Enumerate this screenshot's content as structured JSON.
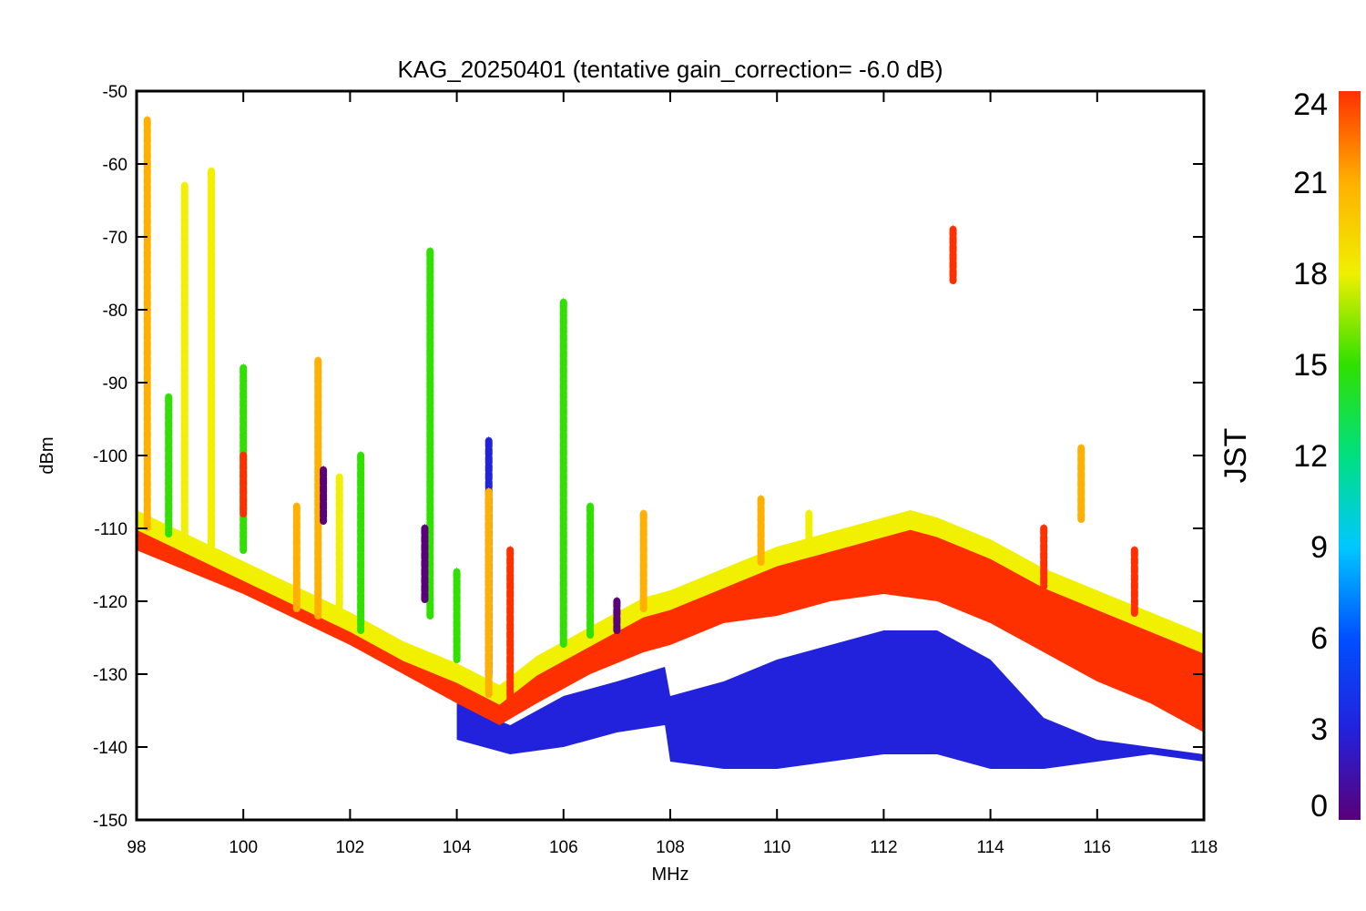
{
  "chart_data": {
    "type": "scatter",
    "title": "KAG_20250401 (tentative gain_correction= -6.0 dB)",
    "xlabel": "MHz",
    "ylabel": "dBm",
    "xlim": [
      98,
      118
    ],
    "ylim": [
      -150,
      -50
    ],
    "x_ticks": [
      "98",
      "100",
      "102",
      "104",
      "106",
      "108",
      "110",
      "112",
      "114",
      "116",
      "118"
    ],
    "y_ticks": [
      "-50",
      "-60",
      "-70",
      "-80",
      "-90",
      "-100",
      "-110",
      "-120",
      "-130",
      "-140",
      "-150"
    ],
    "colorbar": {
      "label": "JST",
      "range": [
        0,
        24
      ],
      "ticks": [
        "24",
        "21",
        "18",
        "15",
        "12",
        "9",
        "6",
        "3",
        "0"
      ],
      "colormap": [
        "#5a007a",
        "#2222dd",
        "#0050ff",
        "#00c8ff",
        "#00e080",
        "#30e000",
        "#f0f000",
        "#ffb000",
        "#ff3000"
      ]
    },
    "background_band": {
      "description_values": "noise floor upper edge (dBm) vs frequency (MHz)",
      "day_upper": [
        [
          98,
          -109
        ],
        [
          100,
          -116
        ],
        [
          102,
          -123
        ],
        [
          103,
          -127
        ],
        [
          104,
          -130
        ],
        [
          104.8,
          -133
        ],
        [
          105.5,
          -129
        ],
        [
          106.5,
          -125
        ],
        [
          107.5,
          -121
        ],
        [
          108,
          -120
        ],
        [
          109,
          -117
        ],
        [
          110,
          -114
        ],
        [
          111,
          -112
        ],
        [
          112,
          -110
        ],
        [
          112.5,
          -109
        ],
        [
          113,
          -110
        ],
        [
          114,
          -113
        ],
        [
          115,
          -117
        ],
        [
          116,
          -120
        ],
        [
          117,
          -123
        ],
        [
          118,
          -126
        ]
      ],
      "day_lower": [
        [
          98,
          -113
        ],
        [
          100,
          -119
        ],
        [
          102,
          -126
        ],
        [
          103,
          -130
        ],
        [
          104,
          -134
        ],
        [
          104.8,
          -137
        ],
        [
          105.5,
          -134
        ],
        [
          106.5,
          -130
        ],
        [
          107.5,
          -127
        ],
        [
          108,
          -126
        ],
        [
          109,
          -123
        ],
        [
          110,
          -122
        ],
        [
          111,
          -120
        ],
        [
          112,
          -119
        ],
        [
          113,
          -120
        ],
        [
          114,
          -123
        ],
        [
          115,
          -127
        ],
        [
          116,
          -131
        ],
        [
          117,
          -134
        ],
        [
          118,
          -138
        ]
      ],
      "night_upper": [
        [
          104,
          -134
        ],
        [
          105,
          -137
        ],
        [
          106,
          -133
        ],
        [
          107,
          -131
        ],
        [
          107.9,
          -129
        ],
        [
          108,
          -133
        ],
        [
          109,
          -131
        ],
        [
          110,
          -128
        ],
        [
          111,
          -126
        ],
        [
          112,
          -124
        ],
        [
          113,
          -124
        ],
        [
          114,
          -128
        ],
        [
          115,
          -136
        ],
        [
          116,
          -139
        ],
        [
          117,
          -140
        ],
        [
          118,
          -141
        ]
      ],
      "night_lower": [
        [
          104,
          -139
        ],
        [
          105,
          -141
        ],
        [
          106,
          -140
        ],
        [
          107,
          -138
        ],
        [
          107.9,
          -137
        ],
        [
          108,
          -142
        ],
        [
          109,
          -143
        ],
        [
          110,
          -143
        ],
        [
          111,
          -142
        ],
        [
          112,
          -141
        ],
        [
          113,
          -141
        ],
        [
          114,
          -143
        ],
        [
          115,
          -143
        ],
        [
          116,
          -142
        ],
        [
          117,
          -141
        ],
        [
          118,
          -142
        ]
      ]
    },
    "stations": [
      {
        "freq": 98.2,
        "y_top": -54,
        "y_bottom": -110,
        "jst": 20
      },
      {
        "freq": 98.6,
        "y_top": -92,
        "y_bottom": -111,
        "jst": 16
      },
      {
        "freq": 98.9,
        "y_top": -63,
        "y_bottom": -112,
        "jst": 19
      },
      {
        "freq": 99.4,
        "y_top": -61,
        "y_bottom": -113,
        "jst": 18
      },
      {
        "freq": 100.0,
        "y_top": -88,
        "y_bottom": -113,
        "jst": 15
      },
      {
        "freq": 100.0,
        "y_top": -100,
        "y_bottom": -108,
        "jst": 23
      },
      {
        "freq": 101.0,
        "y_top": -107,
        "y_bottom": -121,
        "jst": 20
      },
      {
        "freq": 101.4,
        "y_top": -87,
        "y_bottom": -122,
        "jst": 20
      },
      {
        "freq": 101.5,
        "y_top": -102,
        "y_bottom": -109,
        "jst": 1
      },
      {
        "freq": 101.8,
        "y_top": -103,
        "y_bottom": -123,
        "jst": 17
      },
      {
        "freq": 102.2,
        "y_top": -100,
        "y_bottom": -124,
        "jst": 15
      },
      {
        "freq": 103.5,
        "y_top": -72,
        "y_bottom": -122,
        "jst": 14
      },
      {
        "freq": 103.4,
        "y_top": -110,
        "y_bottom": -120,
        "jst": 1
      },
      {
        "freq": 104.0,
        "y_top": -116,
        "y_bottom": -128,
        "jst": 15
      },
      {
        "freq": 104.6,
        "y_top": -98,
        "y_bottom": -130,
        "jst": 4
      },
      {
        "freq": 104.6,
        "y_top": -105,
        "y_bottom": -133,
        "jst": 20
      },
      {
        "freq": 105.0,
        "y_top": -113,
        "y_bottom": -134,
        "jst": 23
      },
      {
        "freq": 106.0,
        "y_top": -79,
        "y_bottom": -126,
        "jst": 16
      },
      {
        "freq": 106.5,
        "y_top": -107,
        "y_bottom": -125,
        "jst": 14
      },
      {
        "freq": 107.0,
        "y_top": -120,
        "y_bottom": -124,
        "jst": 1
      },
      {
        "freq": 107.5,
        "y_top": -108,
        "y_bottom": -121,
        "jst": 22
      },
      {
        "freq": 109.7,
        "y_top": -106,
        "y_bottom": -115,
        "jst": 20
      },
      {
        "freq": 110.6,
        "y_top": -108,
        "y_bottom": -113,
        "jst": 19
      },
      {
        "freq": 113.3,
        "y_top": -69,
        "y_bottom": -76,
        "jst": 23
      },
      {
        "freq": 115.0,
        "y_top": -110,
        "y_bottom": -118,
        "jst": 23
      },
      {
        "freq": 115.7,
        "y_top": -99,
        "y_bottom": -109,
        "jst": 21
      },
      {
        "freq": 116.7,
        "y_top": -113,
        "y_bottom": -122,
        "jst": 23
      }
    ]
  }
}
